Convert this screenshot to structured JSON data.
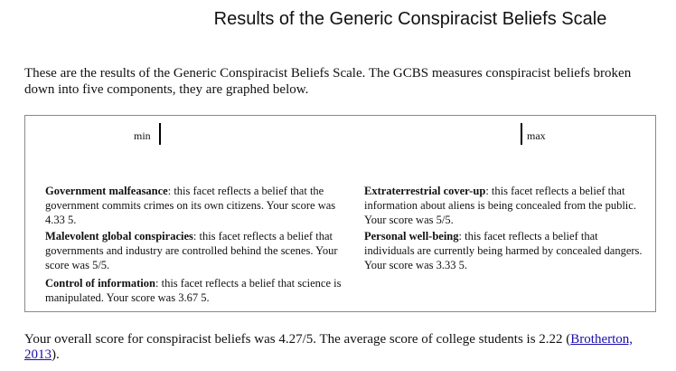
{
  "page": {
    "title": "Results of the Generic Conspiracist Beliefs Scale",
    "intro": "These are the results of the Generic Conspiracist Beliefs Scale. The GCBS measures conspiracist beliefs broken down into five components, they are graphed below."
  },
  "scale": {
    "min_label": "min",
    "max_label": "max"
  },
  "facets": [
    {
      "name": "Government malfeasance",
      "description": ": this facet reflects a belief that the government commits crimes on its own citizens. Your score was 4.33 5."
    },
    {
      "name": "Malevolent global conspiracies",
      "description": ": this facet reflects a belief that governments and industry are controlled behind the scenes. Your score was 5/5."
    },
    {
      "name": "Control of information",
      "description": ": this facet reflects a belief that science is manipulated. Your score was 3.67 5."
    },
    {
      "name": "Extraterrestrial cover-up",
      "description": ": this facet reflects a belief that information about aliens is being concealed from the public. Your score was 5/5."
    },
    {
      "name": "Personal well-being",
      "description": ": this facet reflects a belief that individuals are currently being harmed by concealed dangers. Your score was 3.33 5."
    }
  ],
  "summary": {
    "text": "Your overall score for conspiracist beliefs was 4.27/5. The average score of college students is 2.22 (",
    "citation": "Brotherton, 2013",
    "end": ")."
  }
}
